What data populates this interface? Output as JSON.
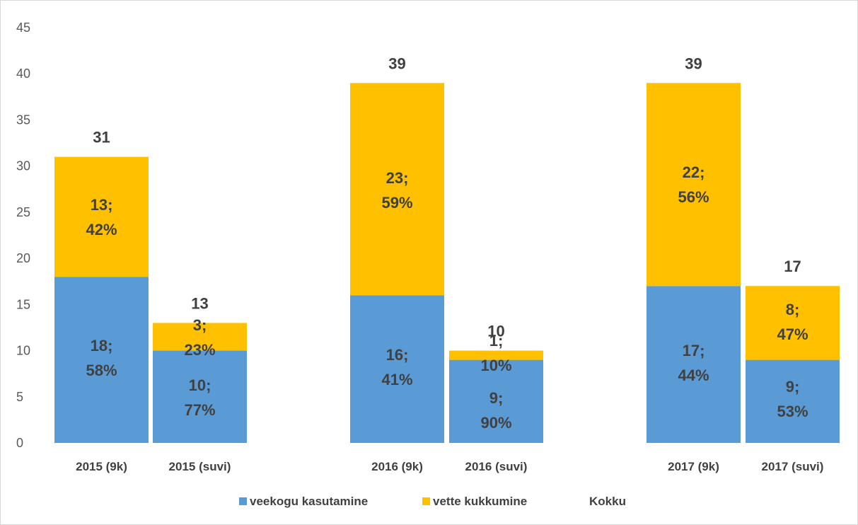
{
  "chart_data": {
    "type": "bar",
    "stacked": true,
    "categories": [
      "2015 (9k)",
      "2015 (suvi)",
      "2016 (9k)",
      "2016 (suvi)",
      "2017 (9k)",
      "2017 (suvi)"
    ],
    "series": [
      {
        "name": "veekogu kasutamine",
        "color": "#5b9bd5",
        "values": [
          18,
          10,
          16,
          9,
          17,
          9
        ],
        "labels": [
          [
            "18;",
            "58%"
          ],
          [
            "10;",
            "77%"
          ],
          [
            "16;",
            "41%"
          ],
          [
            "9;",
            "90%"
          ],
          [
            "17;",
            "44%"
          ],
          [
            "9;",
            "53%"
          ]
        ]
      },
      {
        "name": "vette kukkumine",
        "color": "#ffc000",
        "values": [
          13,
          3,
          23,
          1,
          22,
          8
        ],
        "labels": [
          [
            "13;",
            "42%"
          ],
          [
            "3;",
            "23%"
          ],
          [
            "23;",
            "59%"
          ],
          [
            "1;",
            "10%"
          ],
          [
            "22;",
            "56%"
          ],
          [
            "8;",
            "47%"
          ]
        ]
      }
    ],
    "totals": {
      "name": "Kokku",
      "values": [
        31,
        13,
        39,
        10,
        39,
        17
      ]
    },
    "yticks": [
      "0",
      "5",
      "10",
      "15",
      "20",
      "25",
      "30",
      "35",
      "40",
      "45"
    ],
    "ylim": [
      0,
      45
    ],
    "grid": false,
    "legend": "bottom",
    "title": "",
    "xlabel": "",
    "ylabel": ""
  }
}
